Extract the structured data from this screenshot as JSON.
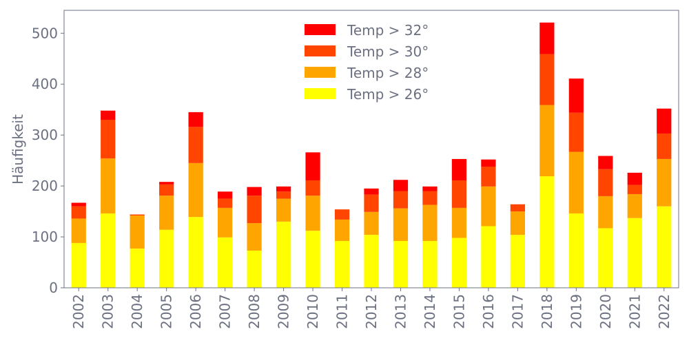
{
  "chart_data": {
    "type": "bar",
    "stacked": true,
    "title": "",
    "xlabel": "",
    "ylabel": "Häufigkeit",
    "ylim": [
      0,
      545
    ],
    "yticks": [
      0,
      100,
      200,
      300,
      400,
      500
    ],
    "grid": false,
    "legend_position": "top-center",
    "categories": [
      "2002",
      "2003",
      "2004",
      "2005",
      "2006",
      "2007",
      "2008",
      "2009",
      "2010",
      "2011",
      "2012",
      "2013",
      "2014",
      "2015",
      "2016",
      "2017",
      "2018",
      "2019",
      "2020",
      "2021",
      "2022"
    ],
    "series": [
      {
        "name": "Temp > 26°",
        "color": "#ffff00",
        "values": [
          88,
          146,
          77,
          114,
          139,
          99,
          73,
          130,
          112,
          92,
          104,
          92,
          92,
          98,
          121,
          104,
          219,
          146,
          117,
          137,
          160
        ]
      },
      {
        "name": "Temp > 28°",
        "color": "#ffa500",
        "values": [
          48,
          108,
          65,
          67,
          106,
          58,
          54,
          45,
          69,
          42,
          45,
          64,
          71,
          59,
          78,
          46,
          140,
          121,
          63,
          47,
          93
        ]
      },
      {
        "name": "Temp > 30°",
        "color": "#ff4500",
        "values": [
          24,
          76,
          2,
          22,
          71,
          18,
          54,
          14,
          30,
          20,
          34,
          34,
          27,
          54,
          39,
          14,
          100,
          77,
          53,
          18,
          50
        ]
      },
      {
        "name": "Temp > 32°",
        "color": "#ff0000",
        "values": [
          7,
          18,
          0,
          5,
          29,
          14,
          17,
          10,
          55,
          0,
          12,
          22,
          9,
          42,
          14,
          0,
          62,
          67,
          26,
          24,
          49
        ]
      }
    ]
  }
}
